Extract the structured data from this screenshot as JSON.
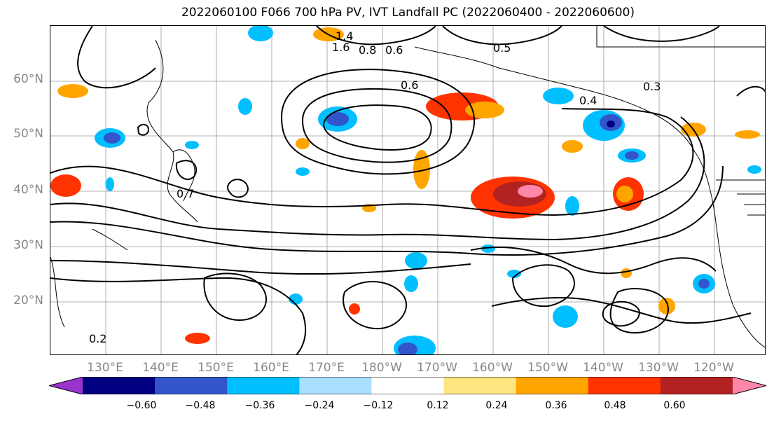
{
  "title": "2022060100 F066 700 hPa PV, IVT Landfall PC (2022060400 - 2022060600)",
  "lat_labels": [
    "60°N",
    "50°N",
    "40°N",
    "30°N",
    "20°N"
  ],
  "lon_labels": [
    "130°E",
    "140°E",
    "150°E",
    "160°E",
    "170°E",
    "180°W",
    "170°W",
    "160°W",
    "150°W",
    "140°W",
    "130°W",
    "120°W"
  ],
  "colorbar": {
    "ticks": [
      "−0.60",
      "−0.48",
      "−0.36",
      "−0.24",
      "−0.12",
      "0.12",
      "0.24",
      "0.36",
      "0.48",
      "0.60"
    ],
    "colors": [
      "#9933cc",
      "#000080",
      "#3355cc",
      "#00bfff",
      "#aadfff",
      "#ffffff",
      "#ffe680",
      "#ffa500",
      "#ff3300",
      "#b22222",
      "#ff88aa"
    ]
  },
  "contour_labels": [
    "1.4",
    "1.6",
    "0.8",
    "0.6",
    "0.5",
    "0.4",
    "0.3",
    "0.2",
    "0.7",
    "0.6"
  ]
}
